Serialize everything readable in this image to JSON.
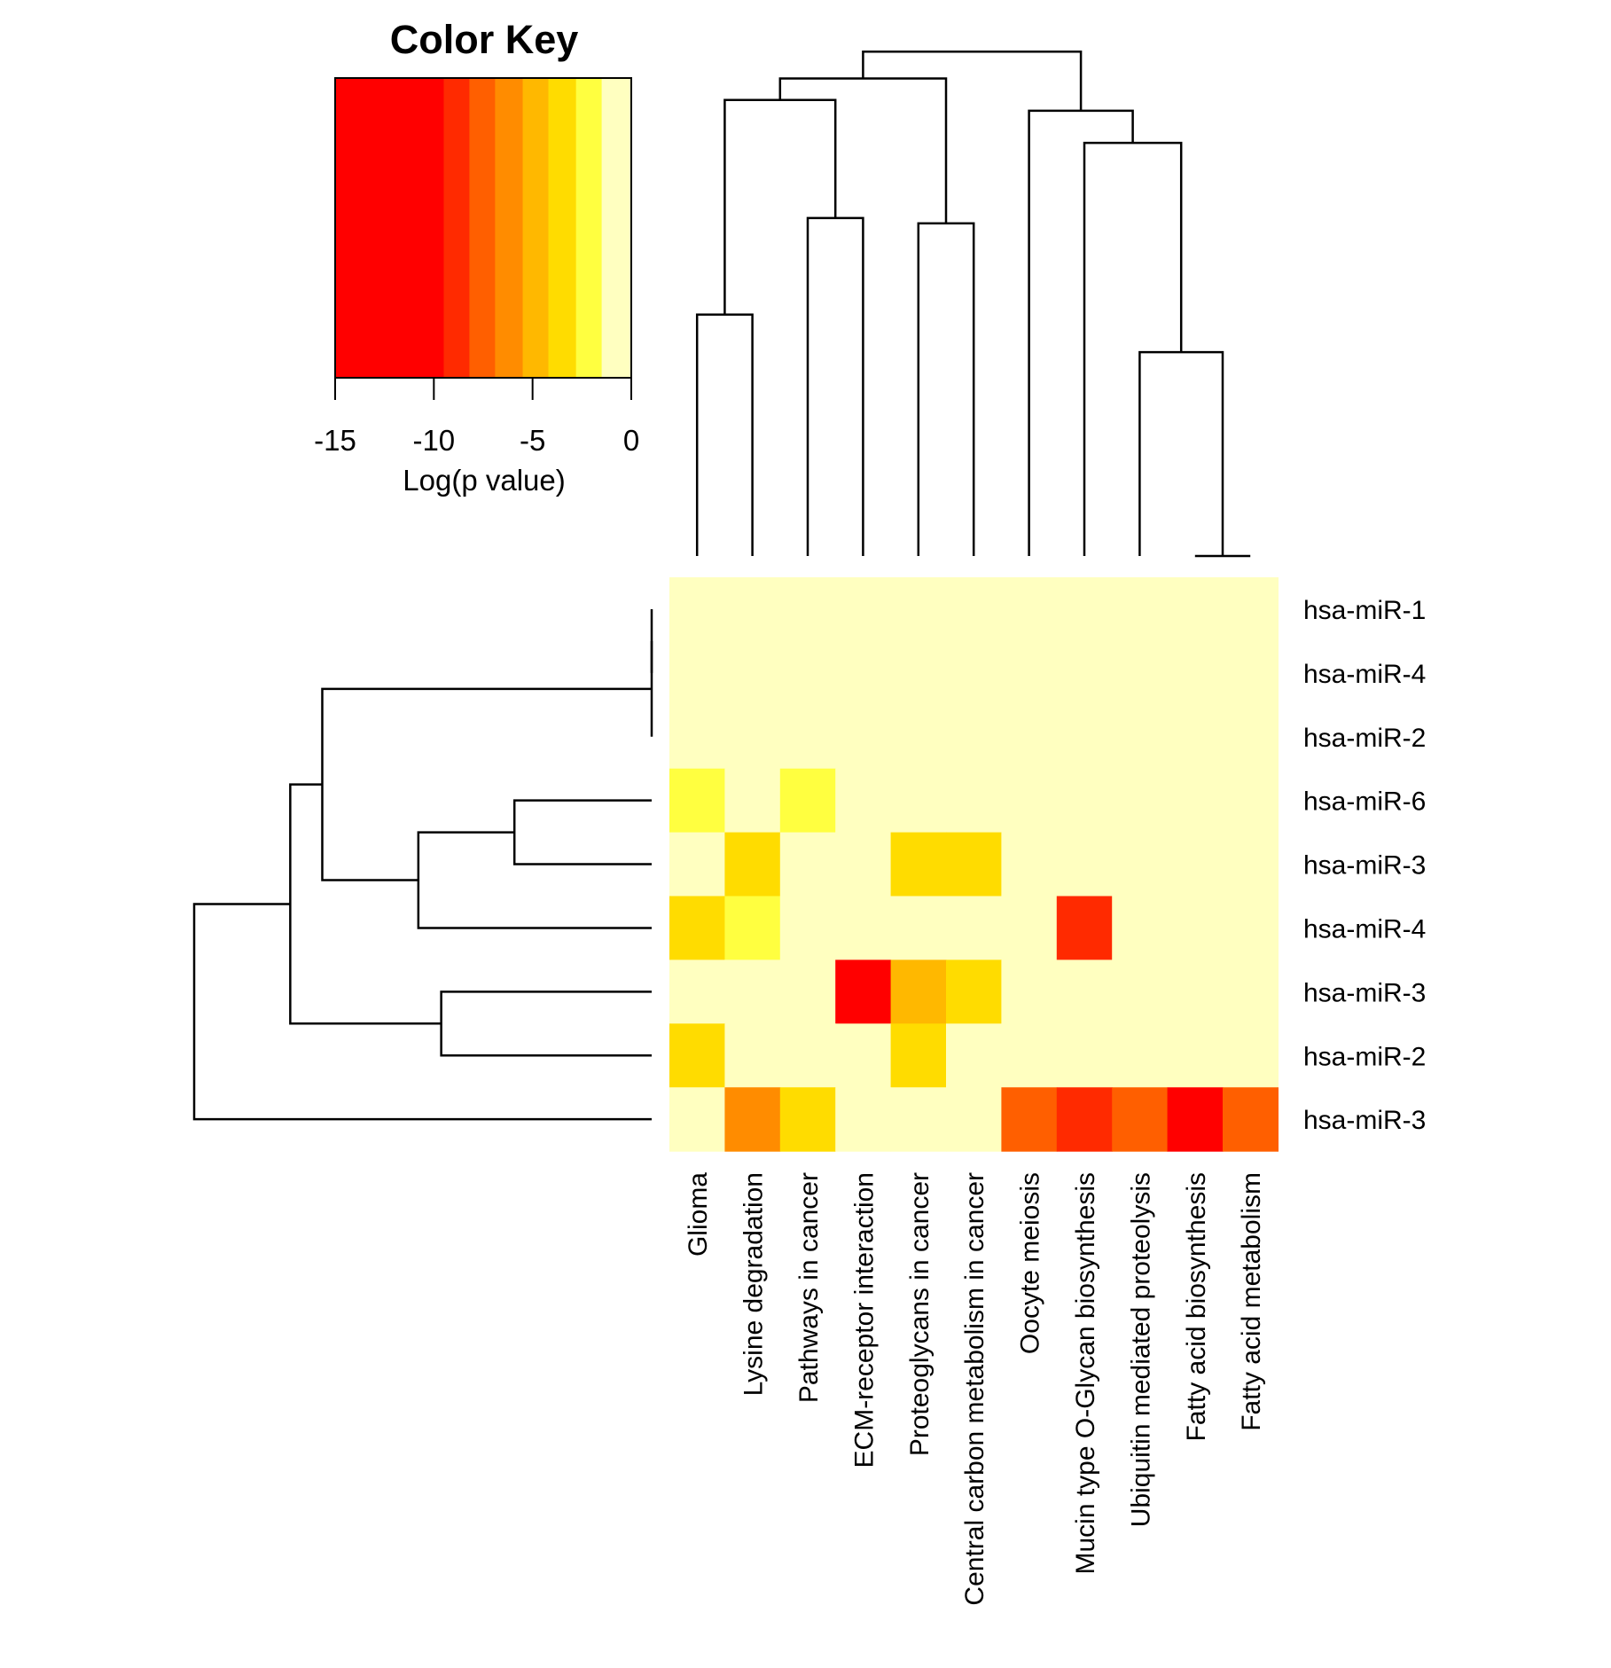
{
  "chart_data": {
    "type": "heatmap",
    "color_key": {
      "title": "Color Key",
      "xlabel": "Log(p value)",
      "range": [
        -15,
        0
      ],
      "ticks": [
        -15,
        -10,
        -5,
        0
      ],
      "tick_labels": [
        "-15",
        "-10",
        "-5",
        "0"
      ],
      "breaks": [
        -15,
        -9.5,
        -8.2,
        -6.9,
        -5.5,
        -4.2,
        -2.8,
        -1.5,
        0
      ],
      "colors": [
        "#ff0000",
        "#ff2a00",
        "#ff5f00",
        "#ff8c00",
        "#ffb800",
        "#ffdc00",
        "#ffff40",
        "#ffffc0"
      ]
    },
    "columns": [
      "Glioma",
      "Lysine degradation",
      "Pathways in cancer",
      "ECM-receptor interaction",
      "Proteoglycans in cancer",
      "Central carbon metabolism in cancer",
      "Oocyte meiosis",
      "Mucin type O-Glycan biosynthesis",
      "Ubiquitin mediated proteolysis",
      "Fatty acid biosynthesis",
      "Fatty acid metabolism"
    ],
    "rows": [
      "hsa-miR-1",
      "hsa-miR-4",
      "hsa-miR-2",
      "hsa-miR-6",
      "hsa-miR-3",
      "hsa-miR-4",
      "hsa-miR-3",
      "hsa-miR-2",
      "hsa-miR-3"
    ],
    "values": [
      [
        0,
        0,
        0,
        0,
        0,
        0,
        0,
        0,
        0,
        0,
        0
      ],
      [
        0,
        0,
        0,
        0,
        0,
        0,
        0,
        0,
        0,
        0,
        0
      ],
      [
        0,
        0,
        0,
        0,
        0,
        0,
        0,
        0,
        0,
        0,
        0
      ],
      [
        -2,
        0,
        -2,
        0,
        0,
        0,
        0,
        0,
        0,
        0,
        0
      ],
      [
        0,
        -3,
        0,
        0,
        -3,
        -3,
        0,
        0,
        0,
        0,
        0
      ],
      [
        -3,
        -2,
        0,
        0,
        0,
        0,
        0,
        -9,
        0,
        0,
        0
      ],
      [
        0,
        0,
        0,
        -12,
        -5,
        -4,
        0,
        0,
        0,
        0,
        0
      ],
      [
        -3,
        0,
        0,
        0,
        -3,
        0,
        0,
        0,
        0,
        0,
        0
      ],
      [
        0,
        -6,
        -4,
        0,
        0,
        0,
        -7,
        -9,
        -7,
        -12,
        -8
      ]
    ],
    "col_dendrogram": [
      [
        9,
        10,
        0.0
      ],
      [
        8,
        11,
        0.38
      ],
      [
        0,
        1,
        0.45
      ],
      [
        7,
        12,
        0.77
      ],
      [
        4,
        5,
        0.62
      ],
      [
        6,
        14,
        0.83
      ],
      [
        2,
        3,
        0.63
      ],
      [
        13,
        17,
        0.85
      ],
      [
        15,
        18,
        0.89
      ],
      [
        16,
        19,
        0.94
      ]
    ],
    "row_dendrogram": [
      [
        0,
        1,
        0.0
      ],
      [
        9,
        2,
        0.0
      ],
      [
        3,
        4,
        0.3
      ],
      [
        5,
        11,
        0.51
      ],
      [
        6,
        7,
        0.46
      ],
      [
        10,
        12,
        0.72
      ],
      [
        13,
        14,
        0.79
      ],
      [
        8,
        15,
        1.0
      ]
    ]
  }
}
